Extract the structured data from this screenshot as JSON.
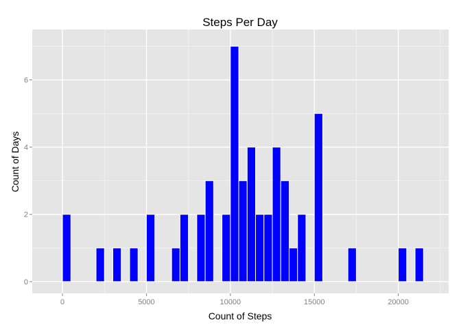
{
  "chart_data": {
    "type": "bar",
    "title": "Steps Per Day",
    "xlabel": "Count of Steps",
    "ylabel": "Count of Days",
    "xlim": [
      -1800,
      23000
    ],
    "ylim": [
      -0.35,
      7.5
    ],
    "x_ticks": [
      0,
      5000,
      10000,
      15000,
      20000
    ],
    "y_ticks": [
      0,
      2,
      4,
      6
    ],
    "x_tick_labels": [
      "0",
      "5000",
      "10000",
      "15000",
      "20000"
    ],
    "y_tick_labels": [
      "0",
      "2",
      "4",
      "6"
    ],
    "bin_width": 500,
    "bin_starts": [
      0,
      2000,
      3000,
      4000,
      5000,
      6500,
      7000,
      8000,
      8500,
      9500,
      10000,
      10500,
      11000,
      11500,
      12000,
      12500,
      13000,
      13500,
      14000,
      15000,
      17000,
      20000,
      21000
    ],
    "values": [
      2,
      1,
      1,
      1,
      2,
      1,
      2,
      2,
      3,
      2,
      7,
      3,
      4,
      2,
      2,
      4,
      3,
      1,
      2,
      5,
      1,
      1,
      1
    ],
    "grid": true,
    "legend": "none",
    "colors": {
      "bar_fill": "#0000ff",
      "bar_outline": "#ffffff",
      "panel_background": "#e5e5e5",
      "grid_major": "#ffffff",
      "grid_minor": "#f2f2f2",
      "tick_text": "#7f7f7f"
    }
  }
}
